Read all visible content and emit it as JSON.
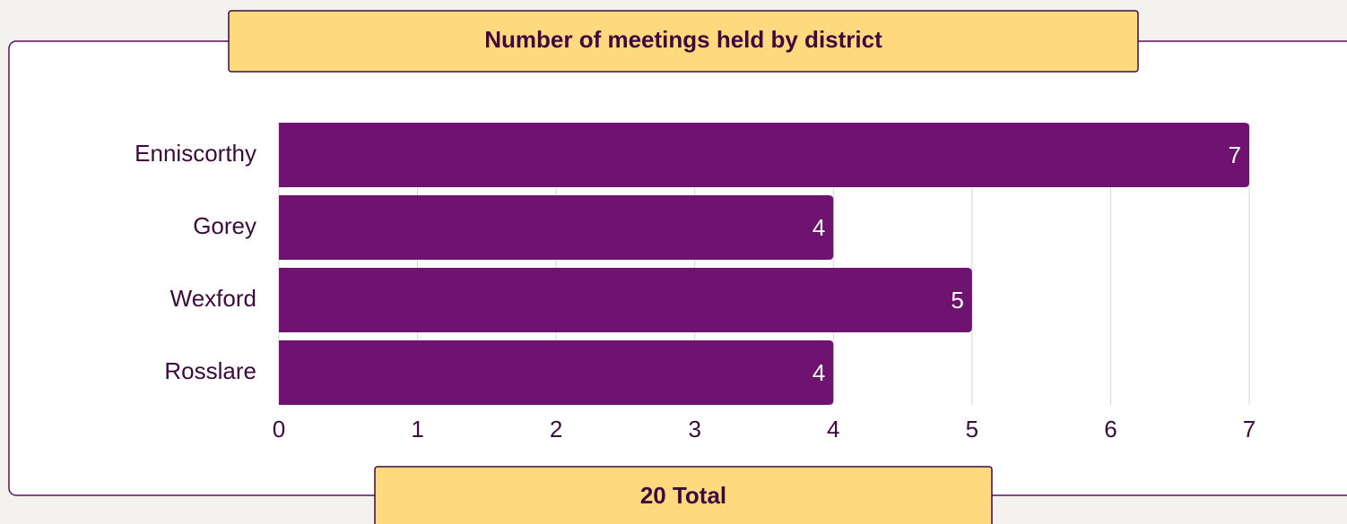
{
  "chart_data": {
    "type": "bar",
    "orientation": "horizontal",
    "title": "Number of meetings held by district",
    "categories": [
      "Enniscorthy",
      "Gorey",
      "Wexford",
      "Rosslare"
    ],
    "values": [
      7,
      4,
      5,
      4
    ],
    "color": "#6e1470",
    "xlim": [
      0,
      7
    ],
    "xticks": [
      0,
      1,
      2,
      3,
      4,
      5,
      6,
      7
    ],
    "grid": true,
    "total": "20 Total"
  }
}
